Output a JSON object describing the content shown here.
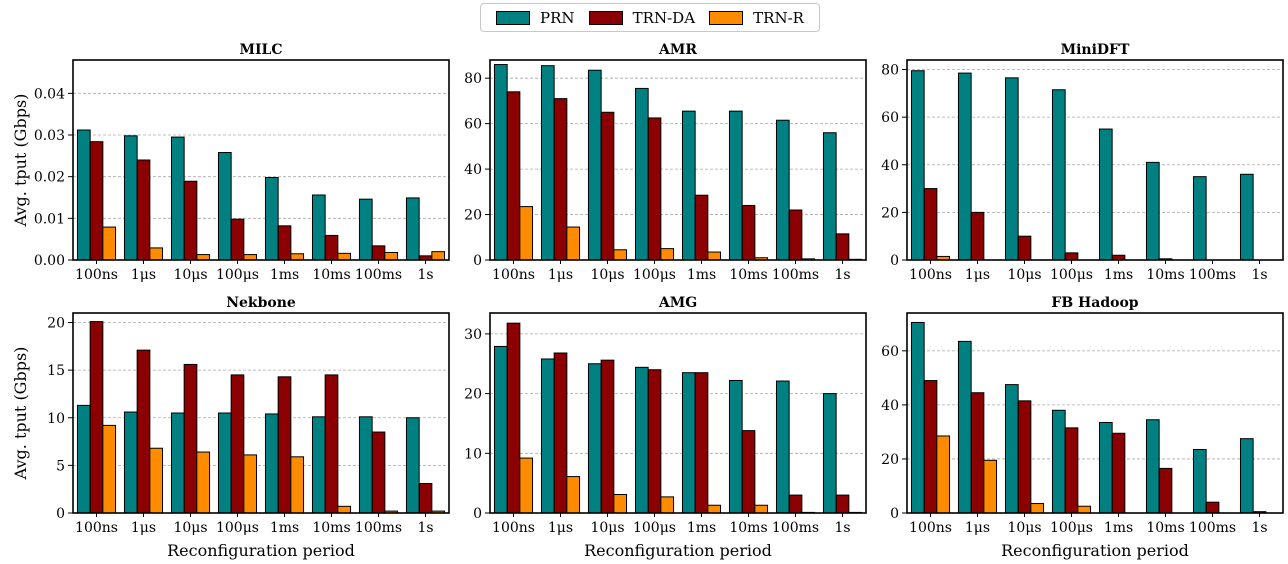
{
  "legend": {
    "items": [
      {
        "label": "PRN",
        "color": "#008080"
      },
      {
        "label": "TRN-DA",
        "color": "#8b0000"
      },
      {
        "label": "TRN-R",
        "color": "#ff8c00"
      }
    ]
  },
  "chart_data": [
    {
      "type": "bar",
      "title": "MILC",
      "categories": [
        "100ns",
        "1μs",
        "10μs",
        "100μs",
        "1ms",
        "10ms",
        "100ms",
        "1s"
      ],
      "ylabel": "Avg. tput (Gbps)",
      "xlabel": "",
      "ylim": [
        0,
        0.048
      ],
      "yticks": [
        "0.00",
        "0.01",
        "0.02",
        "0.03",
        "0.04"
      ],
      "ytick_values": [
        0,
        0.01,
        0.02,
        0.03,
        0.04
      ],
      "series": [
        {
          "name": "PRN",
          "values": [
            0.0312,
            0.0298,
            0.0295,
            0.0258,
            0.0198,
            0.0156,
            0.0146,
            0.0149
          ]
        },
        {
          "name": "TRN-DA",
          "values": [
            0.0284,
            0.024,
            0.0189,
            0.0098,
            0.0082,
            0.0059,
            0.0034,
            0.001
          ]
        },
        {
          "name": "TRN-R",
          "values": [
            0.0079,
            0.0029,
            0.0013,
            0.0013,
            0.0015,
            0.0016,
            0.0018,
            0.002
          ]
        }
      ]
    },
    {
      "type": "bar",
      "title": "AMR",
      "categories": [
        "100ns",
        "1μs",
        "10μs",
        "100μs",
        "1ms",
        "10ms",
        "100ms",
        "1s"
      ],
      "ylabel": "",
      "xlabel": "",
      "ylim": [
        0,
        88
      ],
      "yticks": [
        "0",
        "20",
        "40",
        "60",
        "80"
      ],
      "ytick_values": [
        0,
        20,
        40,
        60,
        80
      ],
      "series": [
        {
          "name": "PRN",
          "values": [
            86,
            85.5,
            83.5,
            75.5,
            65.5,
            65.5,
            61.5,
            56
          ]
        },
        {
          "name": "TRN-DA",
          "values": [
            74,
            71,
            65,
            62.5,
            28.5,
            24,
            22,
            11.5
          ]
        },
        {
          "name": "TRN-R",
          "values": [
            23.5,
            14.5,
            4.5,
            5,
            3.5,
            1,
            0.5,
            0.3
          ]
        }
      ]
    },
    {
      "type": "bar",
      "title": "MiniDFT",
      "categories": [
        "100ns",
        "1μs",
        "10μs",
        "100μs",
        "1ms",
        "10ms",
        "100ms",
        "1s"
      ],
      "ylabel": "",
      "xlabel": "",
      "ylim": [
        0,
        84
      ],
      "yticks": [
        "0",
        "20",
        "40",
        "60",
        "80"
      ],
      "ytick_values": [
        0,
        20,
        40,
        60,
        80
      ],
      "series": [
        {
          "name": "PRN",
          "values": [
            79.5,
            78.5,
            76.5,
            71.5,
            55,
            41,
            35,
            36
          ]
        },
        {
          "name": "TRN-DA",
          "values": [
            30,
            20,
            10,
            3,
            2,
            0.5,
            0,
            0
          ]
        },
        {
          "name": "TRN-R",
          "values": [
            1.5,
            0,
            0,
            0,
            0,
            0,
            0,
            0
          ]
        }
      ]
    },
    {
      "type": "bar",
      "title": "Nekbone",
      "categories": [
        "100ns",
        "1μs",
        "10μs",
        "100μs",
        "1ms",
        "10ms",
        "100ms",
        "1s"
      ],
      "ylabel": "Avg. tput (Gbps)",
      "xlabel": "Reconfiguration period",
      "ylim": [
        0,
        21
      ],
      "yticks": [
        "0",
        "5",
        "10",
        "15",
        "20"
      ],
      "ytick_values": [
        0,
        5,
        10,
        15,
        20
      ],
      "series": [
        {
          "name": "PRN",
          "values": [
            11.3,
            10.6,
            10.5,
            10.5,
            10.4,
            10.1,
            10.1,
            10
          ]
        },
        {
          "name": "TRN-DA",
          "values": [
            20.1,
            17.1,
            15.6,
            14.5,
            14.3,
            14.5,
            8.5,
            3.1
          ]
        },
        {
          "name": "TRN-R",
          "values": [
            9.2,
            6.8,
            6.4,
            6.1,
            5.9,
            0.7,
            0.2,
            0.2
          ]
        }
      ]
    },
    {
      "type": "bar",
      "title": "AMG",
      "categories": [
        "100ns",
        "1μs",
        "10μs",
        "100μs",
        "1ms",
        "10ms",
        "100ms",
        "1s"
      ],
      "ylabel": "",
      "xlabel": "Reconfiguration period",
      "ylim": [
        0,
        33.5
      ],
      "yticks": [
        "0",
        "10",
        "20",
        "30"
      ],
      "ytick_values": [
        0,
        10,
        20,
        30
      ],
      "series": [
        {
          "name": "PRN",
          "values": [
            27.9,
            25.8,
            25,
            24.4,
            23.5,
            22.2,
            22.1,
            20
          ]
        },
        {
          "name": "TRN-DA",
          "values": [
            31.8,
            26.8,
            25.6,
            24,
            23.5,
            13.8,
            3,
            3
          ]
        },
        {
          "name": "TRN-R",
          "values": [
            9.2,
            6.1,
            3.1,
            2.7,
            1.3,
            1.3,
            0.1,
            0.1
          ]
        }
      ]
    },
    {
      "type": "bar",
      "title": "FB Hadoop",
      "categories": [
        "100ns",
        "1μs",
        "10μs",
        "100μs",
        "1ms",
        "10ms",
        "100ms",
        "1s"
      ],
      "ylabel": "",
      "xlabel": "Reconfiguration period",
      "ylim": [
        0,
        74
      ],
      "yticks": [
        "0",
        "20",
        "40",
        "60"
      ],
      "ytick_values": [
        0,
        20,
        40,
        60
      ],
      "series": [
        {
          "name": "PRN",
          "values": [
            70.5,
            63.5,
            47.5,
            38,
            33.5,
            34.5,
            23.5,
            27.5
          ]
        },
        {
          "name": "TRN-DA",
          "values": [
            49,
            44.5,
            41.5,
            31.5,
            29.5,
            16.5,
            4,
            0.5
          ]
        },
        {
          "name": "TRN-R",
          "values": [
            28.5,
            19.5,
            3.5,
            2.5,
            0,
            0,
            0,
            0
          ]
        }
      ]
    }
  ]
}
